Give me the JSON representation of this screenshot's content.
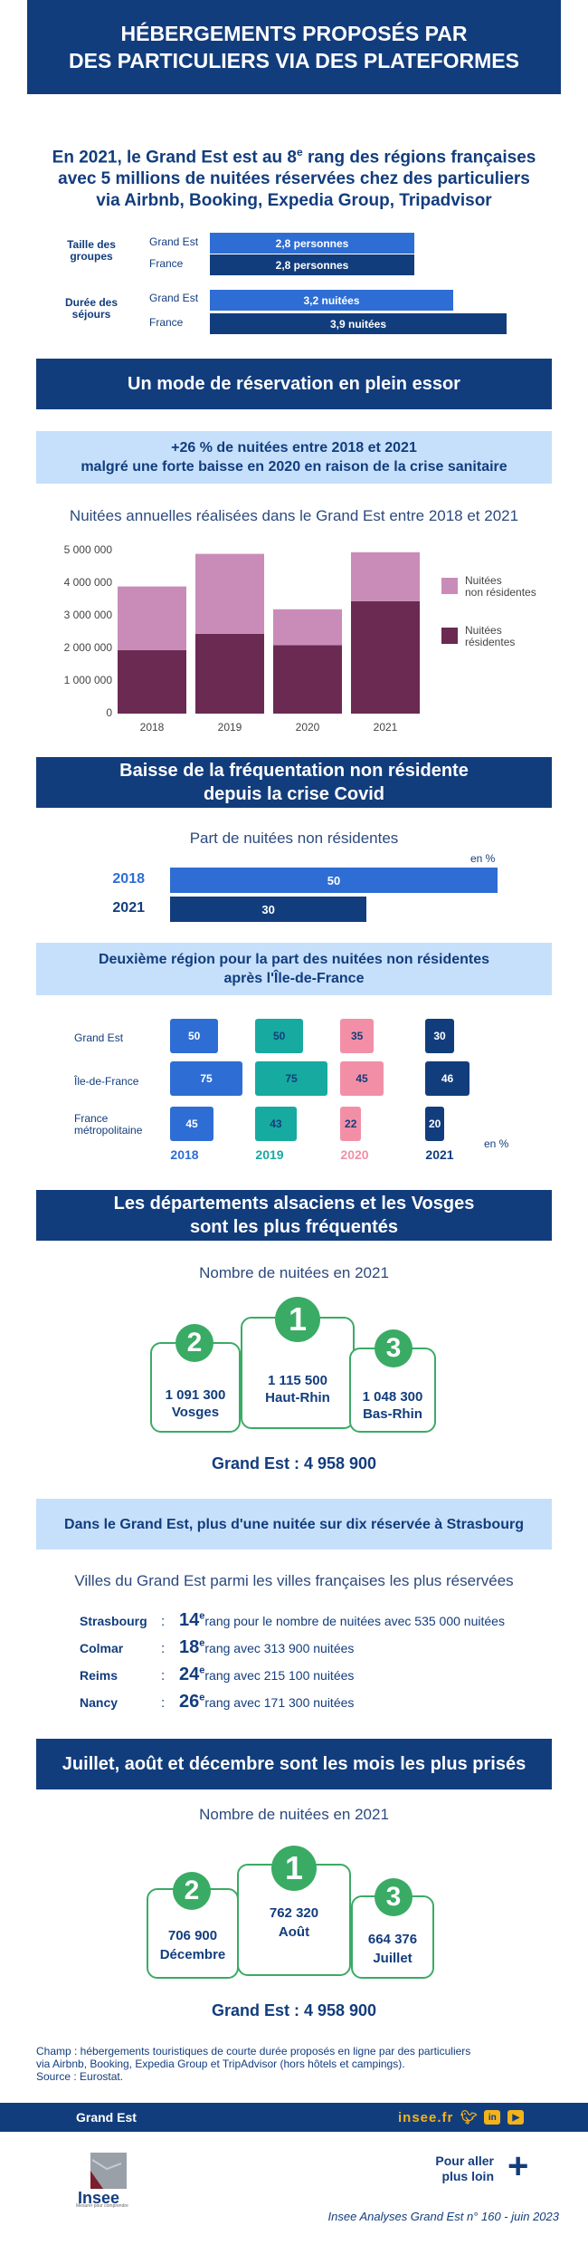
{
  "header": {
    "title_line1": "HÉBERGEMENTS PROPOSÉS PAR",
    "title_line2": "DES PARTICULIERS VIA DES PLATEFORMES"
  },
  "intro": {
    "line1_pre": "En 2021, le Grand Est est au 8",
    "line1_sup": "e",
    "line1_post": " rang des régions françaises",
    "line2": "avec 5 millions de nuitées réservées chez des particuliers",
    "line3": "via Airbnb, Booking, Expedia Group, Tripadvisor"
  },
  "summary_bars": {
    "groups": [
      {
        "label": "Taille des groupes",
        "rows": [
          {
            "name": "Grand Est",
            "text": "2,8 personnes",
            "value": 2.8,
            "color": "#2e6dd4"
          },
          {
            "name": "France",
            "text": "2,8 personnes",
            "value": 2.8,
            "color": "#123d7d"
          }
        ]
      },
      {
        "label": "Durée des séjours",
        "rows": [
          {
            "name": "Grand Est",
            "text": "3,2 nuitées",
            "value": 3.2,
            "color": "#2e6dd4"
          },
          {
            "name": "France",
            "text": "3,9 nuitées",
            "value": 3.9,
            "color": "#123d7d"
          }
        ]
      }
    ]
  },
  "section1": {
    "title": "Un mode de réservation en plein essor",
    "subtitle_line1": "+26 % de nuitées entre 2018 et 2021",
    "subtitle_line2": "malgré une forte baisse en 2020 en raison de la crise sanitaire",
    "chart_caption": "Nuitées annuelles réalisées dans le Grand Est entre 2018 et 2021",
    "y_ticks": [
      "5 000 000",
      "4 000 000",
      "3 000 000",
      "2 000 000",
      "1 000 000",
      "0"
    ],
    "legend_nonres_1": "Nuitées",
    "legend_nonres_2": "non résidentes",
    "legend_res_1": "Nuitées",
    "legend_res_2": "résidentes",
    "color_nonres": "#c98cb8",
    "color_res": "#6a2a52"
  },
  "chart_data": [
    {
      "type": "bar",
      "stacked": true,
      "title": "Nuitées annuelles réalisées dans le Grand Est entre 2018 et 2021",
      "categories": [
        "2018",
        "2019",
        "2020",
        "2021"
      ],
      "series": [
        {
          "name": "Nuitées résidentes",
          "values": [
            1950000,
            2450000,
            2100000,
            3450000
          ]
        },
        {
          "name": "Nuitées non résidentes",
          "values": [
            1950000,
            2450000,
            1100000,
            1500000
          ]
        }
      ],
      "ylim": [
        0,
        5000000
      ],
      "legend": "right"
    },
    {
      "type": "bar",
      "orientation": "horizontal",
      "title": "Part de nuitées non résidentes",
      "categories": [
        "2018",
        "2021"
      ],
      "values": [
        50,
        30
      ],
      "unit": "en %"
    },
    {
      "type": "bar",
      "orientation": "horizontal",
      "title": "Deuxième région pour la part des nuitées non résidentes après l'Île-de-France",
      "categories": [
        "Grand Est",
        "Île-de-France",
        "France métropolitaine"
      ],
      "series": [
        {
          "name": "2018",
          "values": [
            50,
            75,
            45
          ]
        },
        {
          "name": "2019",
          "values": [
            50,
            75,
            43
          ]
        },
        {
          "name": "2020",
          "values": [
            35,
            45,
            22
          ]
        },
        {
          "name": "2021",
          "values": [
            30,
            46,
            20
          ]
        }
      ],
      "unit": "en %"
    }
  ],
  "section2": {
    "title_line1": "Baisse de la fréquentation non résidente",
    "title_line2": "depuis la crise Covid",
    "caption": "Part de nuitées non résidentes",
    "unit": "en %",
    "rows": [
      {
        "year": "2018",
        "value": 50,
        "text": "50",
        "color": "#2e6dd4"
      },
      {
        "year": "2021",
        "value": 30,
        "text": "30",
        "color": "#123d7d"
      }
    ]
  },
  "section3": {
    "title_line1": "Deuxième région pour la part des nuitées non résidentes",
    "title_line2": "après l'Île-de-France",
    "rows": [
      "Grand Est",
      "Île-de-France",
      "France métropolitaine"
    ],
    "row3_line1": "France",
    "row3_line2": "métropolitaine",
    "years": [
      {
        "year": "2018",
        "color": "#2e6dd4",
        "text_color": "#ffffff",
        "label_color": "#2e6dd4",
        "values": [
          50,
          75,
          45
        ]
      },
      {
        "year": "2019",
        "color": "#17aaa0",
        "text_color": "#123d7d",
        "label_color": "#17aaa0",
        "values": [
          50,
          75,
          43
        ]
      },
      {
        "year": "2020",
        "color": "#f28fa6",
        "text_color": "#123d7d",
        "label_color": "#f28fa6",
        "values": [
          35,
          45,
          22
        ]
      },
      {
        "year": "2021",
        "color": "#123d7d",
        "text_color": "#ffffff",
        "label_color": "#123d7d",
        "values": [
          30,
          46,
          20
        ]
      }
    ],
    "unit": "en %"
  },
  "section4": {
    "title_line1": "Les départements alsaciens et les Vosges",
    "title_line2": "sont les plus fréquentés",
    "caption": "Nombre de nuitées en 2021",
    "podium": [
      {
        "rank": "2",
        "value": "1 091 300",
        "name": "Vosges"
      },
      {
        "rank": "1",
        "value": "1 115 500",
        "name": "Haut-Rhin"
      },
      {
        "rank": "3",
        "value": "1 048 300",
        "name": "Bas-Rhin"
      }
    ],
    "total": "Grand Est : 4 958 900"
  },
  "section5": {
    "title": "Dans le Grand Est,  plus d'une nuitée sur dix réservée à Strasbourg",
    "caption": "Villes du Grand Est parmi les villes françaises les plus réservées",
    "cities": [
      {
        "name": "Strasbourg",
        "rank": "14",
        "sup": "e",
        "text": "rang pour le nombre de nuitées avec 535 000 nuitées"
      },
      {
        "name": "Colmar",
        "rank": "18",
        "sup": "e",
        "text": " rang avec 313 900 nuitées"
      },
      {
        "name": "Reims",
        "rank": "24",
        "sup": "e",
        "text": " rang avec 215 100 nuitées"
      },
      {
        "name": "Nancy",
        "rank": "26",
        "sup": "e",
        "text": " rang avec 171 300 nuitées"
      }
    ]
  },
  "section6": {
    "title": "Juillet, août et décembre sont les mois les plus prisés",
    "caption": "Nombre de nuitées en 2021",
    "podium": [
      {
        "rank": "2",
        "value": "706 900",
        "name": "Décembre"
      },
      {
        "rank": "1",
        "value": "762 320",
        "name": "Août"
      },
      {
        "rank": "3",
        "value": "664 376",
        "name": "Juillet"
      }
    ],
    "total": "Grand Est : 4 958 900"
  },
  "notes": {
    "line1": "Champ : hébergements touristiques de courte durée proposés en ligne par des particuliers",
    "line2": "via Airbnb, Booking, Expedia Group et TripAdvisor (hors hôtels et campings).",
    "line3": "Source : Eurostat."
  },
  "footer": {
    "region": "Grand Est",
    "site": "insee.fr",
    "logo_text": "Insee",
    "logo_tagline": "Mesurer pour comprendre",
    "more_line1": "Pour aller",
    "more_line2": "plus loin",
    "publication": "Insee Analyses Grand Est n° 160 - juin 2023"
  }
}
